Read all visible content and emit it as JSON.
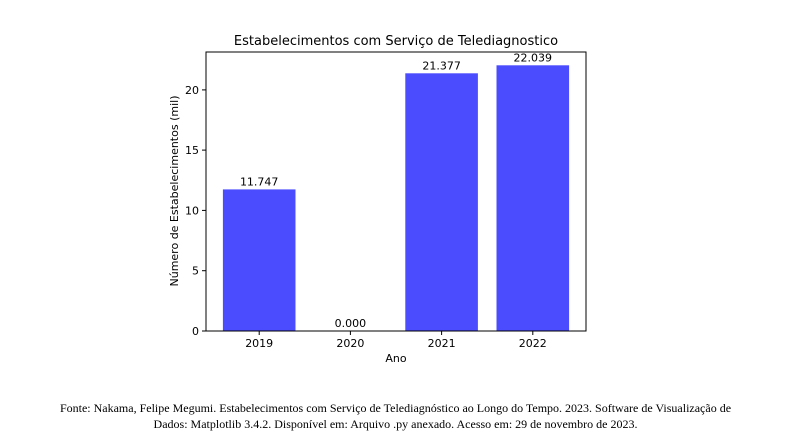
{
  "chart_data": {
    "type": "bar",
    "title": "Estabelecimentos com Serviço de Telediagnostico",
    "xlabel": "Ano",
    "ylabel": "Número de Estabelecimentos (mil)",
    "categories": [
      "2019",
      "2020",
      "2021",
      "2022"
    ],
    "values": [
      11.747,
      0.0,
      21.377,
      22.039
    ],
    "value_labels": [
      "11.747",
      "0.000",
      "21.377",
      "22.039"
    ],
    "yticks": [
      "0",
      "5",
      "10",
      "15",
      "20"
    ],
    "ylim": [
      0,
      23.14
    ],
    "grid": false,
    "bar_color": "#4c4cff"
  },
  "caption": {
    "line1": "Fonte: Nakama, Felipe Megumi. Estabelecimentos com Serviço de Telediagnóstico ao Longo do Tempo. 2023. Software de Visualização de",
    "line2": "Dados: Matplotlib 3.4.2. Disponível em: Arquivo .py anexado. Acesso em: 29 de novembro de 2023."
  }
}
